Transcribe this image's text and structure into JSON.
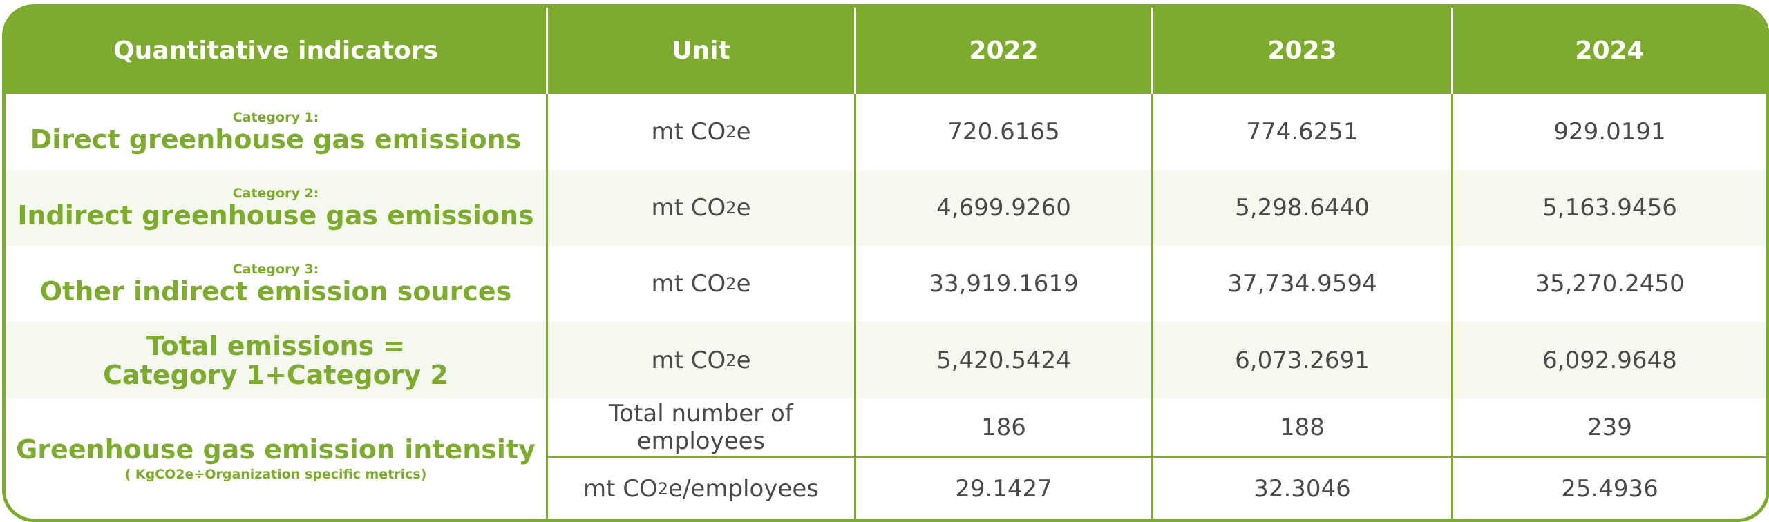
{
  "header": {
    "col_indicator": "Quantitative indicators",
    "col_unit": "Unit",
    "years": [
      "2022",
      "2023",
      "2024"
    ]
  },
  "rows": [
    {
      "category": "Category 1:",
      "indicator": "Direct greenhouse gas emissions",
      "unit": "mt CO2e",
      "values": [
        "720.6165",
        "774.6251",
        "929.0191"
      ]
    },
    {
      "category": "Category 2:",
      "indicator": "Indirect greenhouse gas emissions",
      "unit": "mt CO2e",
      "values": [
        "4,699.9260",
        "5,298.6440",
        "5,163.9456"
      ]
    },
    {
      "category": "Category 3:",
      "indicator": "Other indirect emission sources",
      "unit": "mt CO2e",
      "values": [
        "33,919.1619",
        "37,734.9594",
        "35,270.2450"
      ]
    },
    {
      "indicator_line1": "Total emissions =",
      "indicator_line2": "Category 1+Category 2",
      "unit": "mt CO2e",
      "values": [
        "5,420.5424",
        "6,073.2691",
        "6,092.9648"
      ]
    }
  ],
  "intensity": {
    "indicator": "Greenhouse gas emission intensity",
    "note": "( KgCO2e÷Organization specific metrics)",
    "sub_rows": [
      {
        "unit": "Total number of employees",
        "values": [
          "186",
          "188",
          "239"
        ]
      },
      {
        "unit": "mt CO2e/employees",
        "values": [
          "29.1427",
          "32.3046",
          "25.4936"
        ]
      }
    ]
  },
  "colors": {
    "accent": "#7dab2d",
    "alt_row": "#f4f8ee",
    "text": "#4a4a4a"
  }
}
